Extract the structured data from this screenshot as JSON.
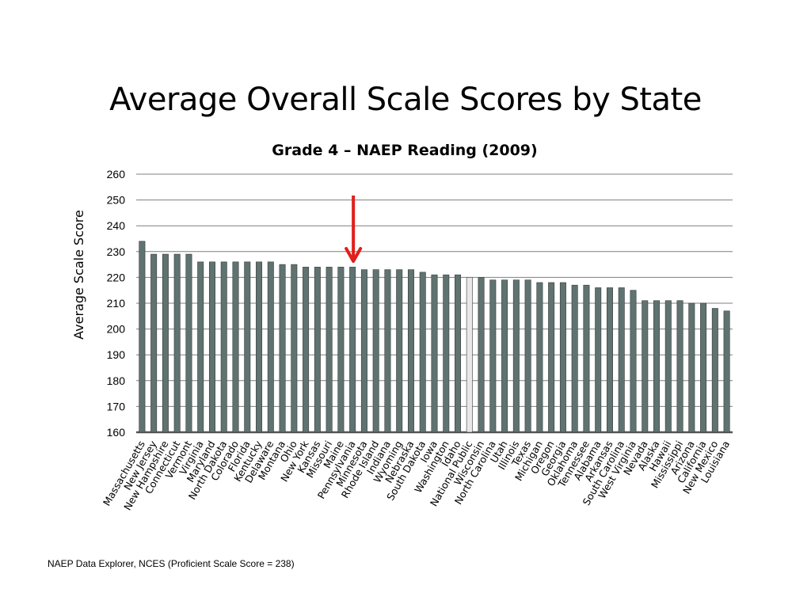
{
  "slide": {
    "title": "Average Overall Scale Scores by State",
    "footnote": "NAEP Data Explorer, NCES (Proficient Scale Score = 238)"
  },
  "colors": {
    "bar": "#5f7370",
    "highlight_bar": "#e8e8e8",
    "arrow": "#e0201c",
    "grid": "#7f7f7f"
  },
  "chart_data": {
    "type": "bar",
    "title": "Grade 4 – NAEP Reading (2009)",
    "xlabel": "",
    "ylabel": "Average Scale Score",
    "ylim": [
      160,
      260
    ],
    "yticks": [
      160,
      170,
      180,
      190,
      200,
      210,
      220,
      230,
      240,
      250,
      260
    ],
    "grid": true,
    "highlight_category": "National Public",
    "arrow_category": "Pennsylvania",
    "categories": [
      "Massachusetts",
      "New Jersey",
      "New Hampshire",
      "Connecticut",
      "Vermont",
      "Virginia",
      "Maryland",
      "North Dakota",
      "Colorado",
      "Florida",
      "Kentucky",
      "Delaware",
      "Montana",
      "Ohio",
      "New York",
      "Kansas",
      "Missouri",
      "Maine",
      "Pennsylvania",
      "Minnesota",
      "Rhode Island",
      "Indiana",
      "Wyoming",
      "Nebraska",
      "South Dakota",
      "Iowa",
      "Washington",
      "Idaho",
      "National Public",
      "Wisconsin",
      "North Carolina",
      "Utah",
      "Illinois",
      "Texas",
      "Michigan",
      "Oregon",
      "Georgia",
      "Oklahoma",
      "Tennessee",
      "Alabama",
      "Arkansas",
      "South Carolina",
      "West Virginia",
      "Nevada",
      "Alaska",
      "Hawaii",
      "Mississippi",
      "Arizona",
      "California",
      "New Mexico",
      "Louisiana"
    ],
    "values": [
      234,
      229,
      229,
      229,
      229,
      226,
      226,
      226,
      226,
      226,
      226,
      226,
      225,
      225,
      224,
      224,
      224,
      224,
      224,
      223,
      223,
      223,
      223,
      223,
      222,
      221,
      221,
      221,
      220,
      220,
      219,
      219,
      219,
      219,
      218,
      218,
      218,
      217,
      217,
      216,
      216,
      216,
      215,
      211,
      211,
      211,
      211,
      210,
      210,
      208,
      207
    ]
  }
}
